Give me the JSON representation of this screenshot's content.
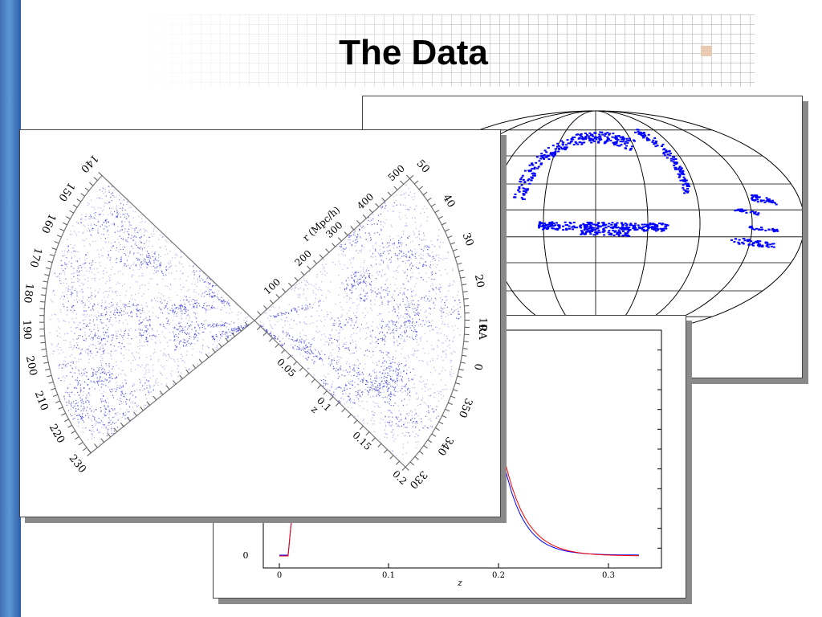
{
  "slide": {
    "title": "The Data"
  },
  "sky_map": {
    "point_color": "#0000ff",
    "grid_color": "#000000"
  },
  "redshift_plot": {
    "y_zero_label": "0",
    "x_ticks": [
      "0",
      "0.1",
      "0.2",
      "0.3"
    ],
    "x_label": "z",
    "series_colors": [
      "#0000ff",
      "#ff0000"
    ]
  },
  "cone_diagram": {
    "ra_ticks_left": [
      "140",
      "150",
      "160",
      "170",
      "180",
      "190",
      "200",
      "210",
      "220",
      "230"
    ],
    "ra_ticks_right": [
      "50",
      "40",
      "30",
      "20",
      "10",
      "0",
      "350",
      "340",
      "330"
    ],
    "ra_label": "RA",
    "r_ticks": [
      "100",
      "200",
      "300",
      "400",
      "500"
    ],
    "r_label": "r (Mpc/h)",
    "z_ticks": [
      "0.05",
      "0.1",
      "0.15",
      "0.2"
    ],
    "z_label": "z",
    "galaxy_color": "#2a2ad8"
  }
}
